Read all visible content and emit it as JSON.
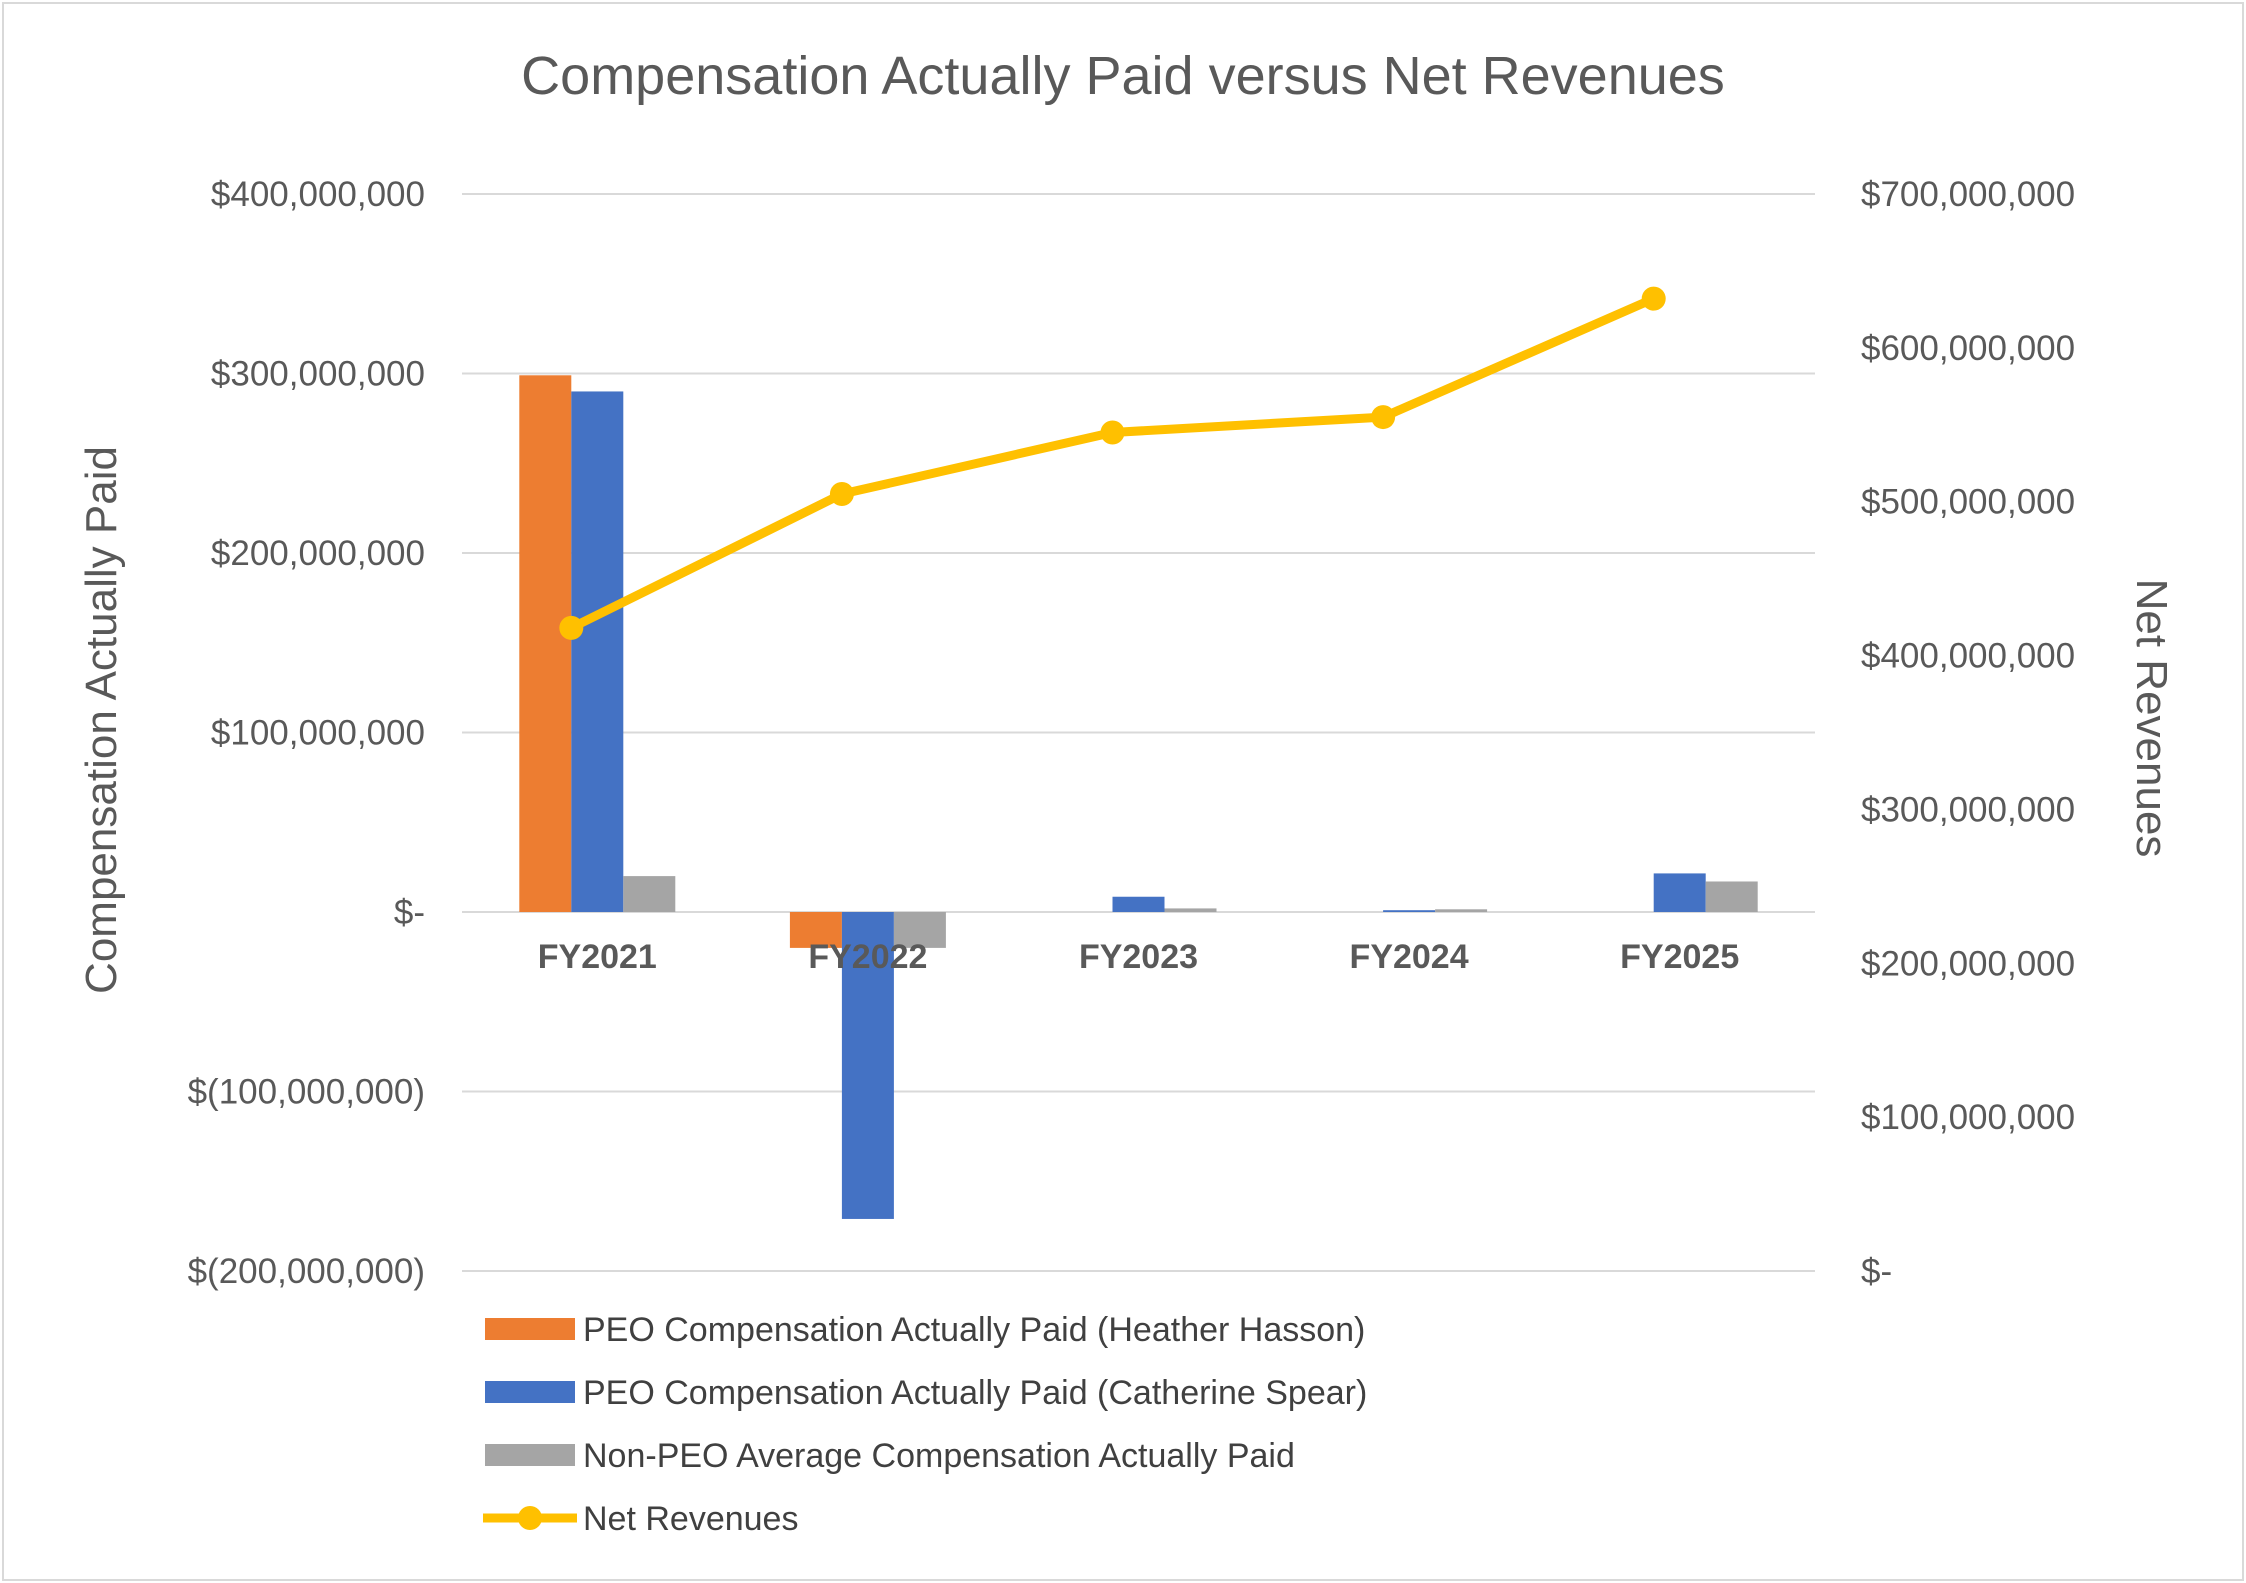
{
  "chart_data": {
    "type": "bar",
    "title": "Compensation Actually Paid versus Net Revenues",
    "categories": [
      "FY2021",
      "FY2022",
      "FY2023",
      "FY2024",
      "FY2025"
    ],
    "ylabel": "Compensation Actually Paid",
    "y2label": "Net Revenues",
    "ylim": [
      -200000000,
      400000000
    ],
    "y2lim": [
      0,
      700000000
    ],
    "yticks": [
      400000000,
      300000000,
      200000000,
      100000000,
      0,
      -100000000,
      -200000000
    ],
    "yticklabels": [
      "$400,000,000",
      "$300,000,000",
      "$200,000,000",
      "$100,000,000",
      "$-",
      "$(100,000,000)",
      "$(200,000,000)"
    ],
    "y2ticks": [
      700000000,
      600000000,
      500000000,
      400000000,
      300000000,
      200000000,
      100000000,
      0
    ],
    "y2ticklabels": [
      "$700,000,000",
      "$600,000,000",
      "$500,000,000",
      "$400,000,000",
      "$300,000,000",
      "$200,000,000",
      "$100,000,000",
      "$-"
    ],
    "grid": true,
    "legend_position": "bottom",
    "series": [
      {
        "name": "PEO Compensation Actually Paid (Heather Hasson)",
        "type": "bar",
        "axis": "left",
        "color": "#ed7d31",
        "values": [
          299000000,
          -20000000,
          null,
          null,
          null
        ]
      },
      {
        "name": "PEO Compensation Actually Paid (Catherine Spear)",
        "type": "bar",
        "axis": "left",
        "color": "#4472c4",
        "values": [
          290000000,
          -171000000,
          8500000,
          1000000,
          21500000
        ]
      },
      {
        "name": "Non-PEO Average Compensation Actually Paid",
        "type": "bar",
        "axis": "left",
        "color": "#a5a5a5",
        "values": [
          20000000,
          -20000000,
          2000000,
          1500000,
          17000000
        ]
      },
      {
        "name": "Net Revenues",
        "type": "line",
        "axis": "right",
        "color": "#ffc000",
        "values": [
          418000000,
          505000000,
          545000000,
          555000000,
          632000000
        ]
      }
    ]
  }
}
